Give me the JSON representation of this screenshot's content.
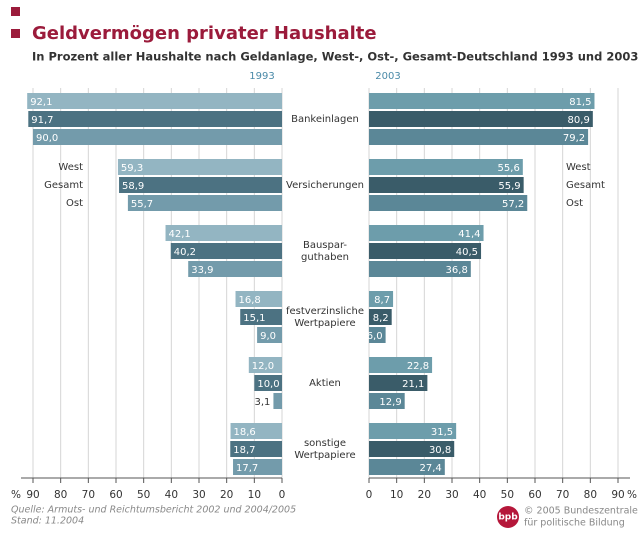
{
  "chart_data": {
    "type": "butterfly",
    "title": "Geldvermögen privater Haushalte",
    "subtitle": "In Prozent aller Haushalte nach Geldanlage, West-, Ost-, Gesamt-Deutschland 1993 und 2003",
    "categories": [
      "Bankeinlagen",
      "Versicherungen",
      "Bauspar-\nguthaben",
      "festverzinsliche\nWertpapiere",
      "Aktien",
      "sonstige\nWertpapiere"
    ],
    "axis_unit": "%",
    "panels": [
      {
        "label": "1993",
        "side": "left",
        "xlim": [
          0,
          90
        ],
        "xticks": [
          0,
          10,
          20,
          30,
          40,
          50,
          60,
          70,
          80,
          90
        ],
        "series": [
          {
            "name": "West",
            "color": "#93b5c2",
            "values": [
              92.1,
              59.3,
              42.1,
              16.8,
              12.0,
              18.6
            ],
            "value_labels": [
              "92,1",
              "59,3",
              "42,1",
              "16,8",
              "12,0",
              "18,6"
            ]
          },
          {
            "name": "Gesamt",
            "color": "#4c7282",
            "values": [
              91.7,
              58.9,
              40.2,
              15.1,
              10.0,
              18.7
            ],
            "value_labels": [
              "91,7",
              "58,9",
              "40,2",
              "15,1",
              "10,0",
              "18,7"
            ]
          },
          {
            "name": "Ost",
            "color": "#739bab",
            "values": [
              90.0,
              55.7,
              33.9,
              9.0,
              3.1,
              17.7
            ],
            "value_labels": [
              "90,0",
              "55,7",
              "33,9",
              "9,0",
              "3,1",
              "17,7"
            ]
          }
        ]
      },
      {
        "label": "2003",
        "side": "right",
        "xlim": [
          0,
          90
        ],
        "xticks": [
          0,
          10,
          20,
          30,
          40,
          50,
          60,
          70,
          80,
          90
        ],
        "series": [
          {
            "name": "West",
            "color": "#6d9dab",
            "values": [
              81.5,
              55.6,
              41.4,
              8.7,
              22.8,
              31.5
            ],
            "value_labels": [
              "81,5",
              "55,6",
              "41,4",
              "8,7",
              "22,8",
              "31,5"
            ]
          },
          {
            "name": "Gesamt",
            "color": "#3a5c69",
            "values": [
              80.9,
              55.9,
              40.5,
              8.2,
              21.1,
              30.8
            ],
            "value_labels": [
              "80,9",
              "55,9",
              "40,5",
              "8,2",
              "21,1",
              "30,8"
            ]
          },
          {
            "name": "Ost",
            "color": "#5b8797",
            "values": [
              79.2,
              57.2,
              36.8,
              6.0,
              12.9,
              27.4
            ],
            "value_labels": [
              "79,2",
              "57,2",
              "36,8",
              "6,0",
              "12,9",
              "27,4"
            ]
          }
        ]
      }
    ],
    "source": "Quelle: Armuts- und Reichtumsbericht 2002 und 2004/2005",
    "stand": "Stand: 11.2004",
    "logo_text": "bpb",
    "credit": [
      "© 2005 Bundeszentrale",
      "für politische Bildung"
    ]
  }
}
